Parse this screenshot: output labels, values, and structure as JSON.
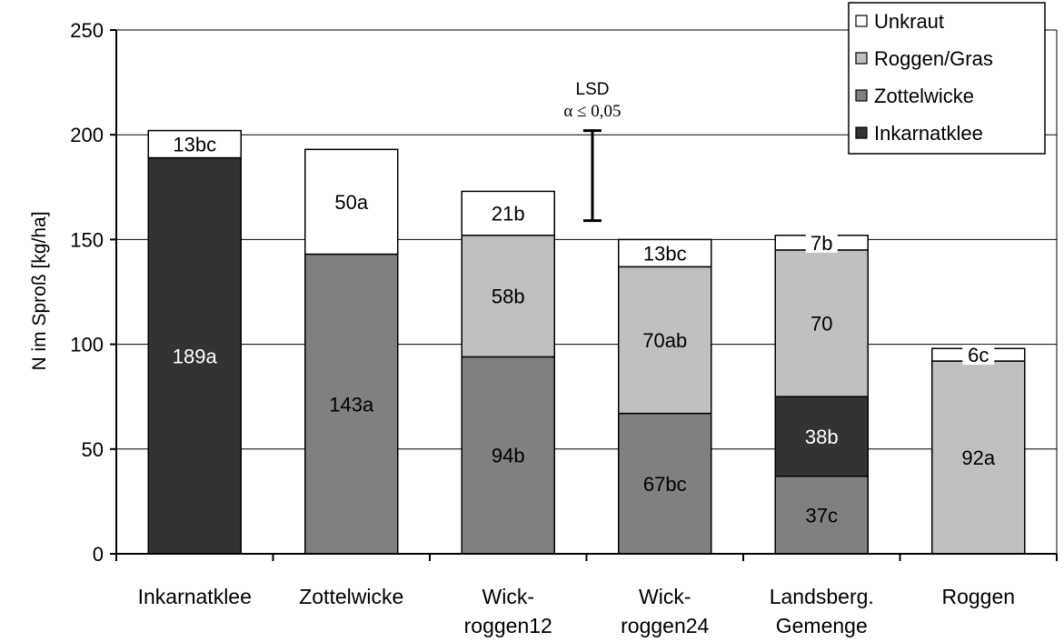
{
  "chart_data": {
    "type": "bar",
    "stacked": true,
    "ylabel": "N im Sproß  [kg/ha]",
    "ylim": [
      0,
      250
    ],
    "yticks": [
      0,
      50,
      100,
      150,
      200,
      250
    ],
    "grid": true,
    "legend_position": "top-right",
    "categories": [
      [
        "Inkarnatklee"
      ],
      [
        "Zottelwicke"
      ],
      [
        "Wick-",
        "roggen12"
      ],
      [
        "Wick-",
        "roggen24"
      ],
      [
        "Landsberg.",
        "Gemenge"
      ],
      [
        "Roggen"
      ]
    ],
    "series": [
      {
        "name": "Zottelwicke",
        "color": "#808080",
        "values": [
          0,
          143,
          94,
          67,
          37,
          0
        ],
        "labels": [
          "",
          "143a",
          "94b",
          "67bc",
          "37c",
          ""
        ]
      },
      {
        "name": "Inkarnatklee",
        "color": "#333333",
        "values": [
          189,
          0,
          0,
          0,
          38,
          0
        ],
        "labels": [
          "189a",
          "",
          "",
          "",
          "38b",
          ""
        ]
      },
      {
        "name": "Roggen/Gras",
        "color": "#c0c0c0",
        "values": [
          0,
          0,
          58,
          70,
          70,
          92
        ],
        "labels": [
          "",
          "",
          "58b",
          "70ab",
          "70",
          "92a"
        ]
      },
      {
        "name": "Unkraut",
        "color": "#ffffff",
        "values": [
          13,
          50,
          21,
          13,
          7,
          6
        ],
        "labels": [
          "13bc",
          "50a",
          "21b",
          "13bc",
          "7b",
          "6c"
        ]
      }
    ],
    "legend_order": [
      "Unkraut",
      "Roggen/Gras",
      "Zottelwicke",
      "Inkarnatklee"
    ],
    "lsd": {
      "label_line1": "LSD",
      "label_line2": "α ≤ 0,05",
      "low": 159,
      "high": 202
    }
  }
}
